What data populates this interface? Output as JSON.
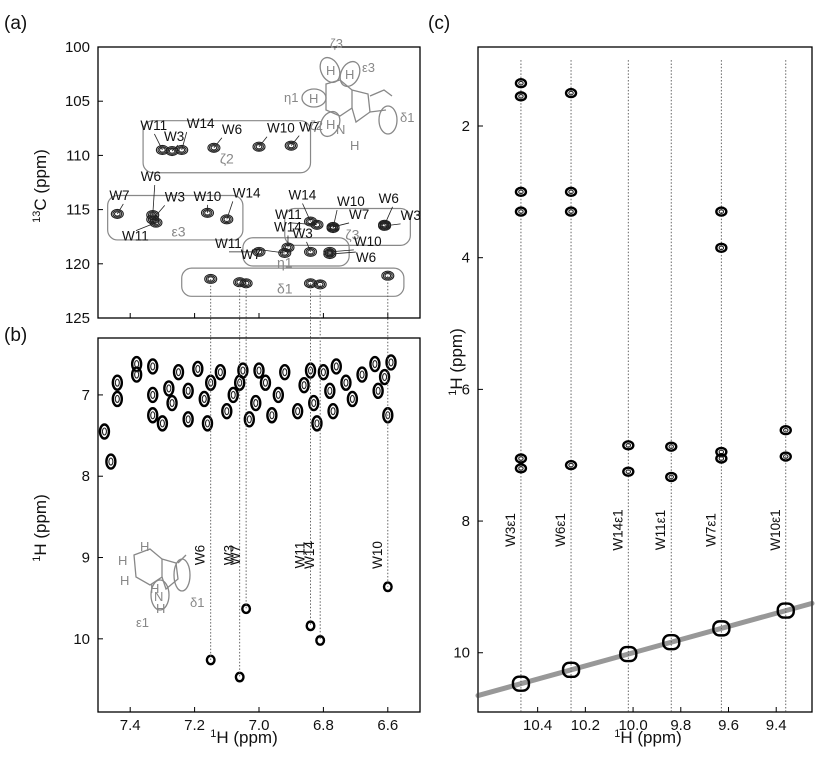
{
  "chart_data": [
    {
      "panel": "(a)",
      "type": "scatter",
      "xlabel": "",
      "ylabel": "13C (ppm)",
      "xlim": [
        7.5,
        6.5
      ],
      "ylim": [
        125,
        100
      ],
      "yticks": [
        "100",
        "105",
        "110",
        "115",
        "120",
        "125"
      ],
      "regions": [
        {
          "name": "ζ2",
          "peaks": [
            {
              "label": "W11",
              "x": 7.3,
              "y": 109.5
            },
            {
              "label": "W3",
              "x": 7.27,
              "y": 109.6
            },
            {
              "label": "W14",
              "x": 7.24,
              "y": 109.5
            },
            {
              "label": "W6",
              "x": 7.14,
              "y": 109.3
            },
            {
              "label": "W10",
              "x": 7.0,
              "y": 109.2
            },
            {
              "label": "W7",
              "x": 6.9,
              "y": 109.1
            }
          ]
        },
        {
          "name": "ε3",
          "peaks": [
            {
              "label": "W7",
              "x": 7.44,
              "y": 115.4
            },
            {
              "label": "W6",
              "x": 7.33,
              "y": 115.5
            },
            {
              "label": "W3",
              "x": 7.33,
              "y": 115.9
            },
            {
              "label": "W11",
              "x": 7.32,
              "y": 116.2
            },
            {
              "label": "W10",
              "x": 7.16,
              "y": 115.3
            },
            {
              "label": "W14",
              "x": 7.1,
              "y": 115.9
            }
          ]
        },
        {
          "name": "ζ3",
          "peaks": [
            {
              "label": "W14",
              "x": 6.84,
              "y": 116.1
            },
            {
              "label": "W11",
              "x": 6.82,
              "y": 116.4
            },
            {
              "label": "W10",
              "x": 6.77,
              "y": 116.7
            },
            {
              "label": "W7",
              "x": 6.77,
              "y": 116.6
            },
            {
              "label": "W6",
              "x": 6.61,
              "y": 116.4
            },
            {
              "label": "W3",
              "x": 6.61,
              "y": 116.5
            }
          ]
        },
        {
          "name": "η1",
          "peaks": [
            {
              "label": "W11",
              "x": 7.0,
              "y": 118.9
            },
            {
              "label": "W14",
              "x": 6.91,
              "y": 118.5
            },
            {
              "label": "W7",
              "x": 6.92,
              "y": 119.0
            },
            {
              "label": "W3",
              "x": 6.84,
              "y": 118.9
            },
            {
              "label": "W10",
              "x": 6.78,
              "y": 118.9
            },
            {
              "label": "W6",
              "x": 6.78,
              "y": 119.1
            }
          ]
        },
        {
          "name": "δ1",
          "peaks": [
            {
              "label": "W6",
              "x": 7.15,
              "y": 121.4
            },
            {
              "label": "W3",
              "x": 7.06,
              "y": 121.7
            },
            {
              "label": "W7",
              "x": 7.04,
              "y": 121.8
            },
            {
              "label": "W11",
              "x": 6.84,
              "y": 121.8
            },
            {
              "label": "W14",
              "x": 6.81,
              "y": 121.9
            },
            {
              "label": "W10",
              "x": 6.6,
              "y": 121.1
            }
          ]
        }
      ],
      "inset_labels": [
        "ζ3",
        "ε3",
        "η1",
        "ζ2",
        "δ1",
        "H",
        "H",
        "H",
        "H",
        "N",
        "H"
      ]
    },
    {
      "panel": "(b)",
      "type": "scatter",
      "xlabel": "1H (ppm)",
      "ylabel": "1H (ppm)",
      "xlim": [
        7.5,
        6.5
      ],
      "ylim": [
        6.3,
        10.9
      ],
      "xticks": [
        "7.4",
        "7.2",
        "7.0",
        "6.8",
        "6.6"
      ],
      "yticks": [
        "7",
        "8",
        "9",
        "10"
      ],
      "cross_peaks": [
        {
          "label": "W6",
          "x": 7.15,
          "y": 10.26
        },
        {
          "label": "W3",
          "x": 7.06,
          "y": 10.47
        },
        {
          "label": "W7",
          "x": 7.04,
          "y": 9.63
        },
        {
          "label": "W11",
          "x": 6.84,
          "y": 9.84
        },
        {
          "label": "W14",
          "x": 6.81,
          "y": 10.02
        },
        {
          "label": "W10",
          "x": 6.6,
          "y": 9.36
        }
      ],
      "aromatic_cluster": [
        [
          7.44,
          6.85
        ],
        [
          7.44,
          7.05
        ],
        [
          7.48,
          7.45
        ],
        [
          7.46,
          7.82
        ],
        [
          7.38,
          6.62
        ],
        [
          7.38,
          6.75
        ],
        [
          7.33,
          6.65
        ],
        [
          7.33,
          7.0
        ],
        [
          7.33,
          7.25
        ],
        [
          7.3,
          7.35
        ],
        [
          7.28,
          6.92
        ],
        [
          7.27,
          7.1
        ],
        [
          7.25,
          6.72
        ],
        [
          7.22,
          6.95
        ],
        [
          7.22,
          7.3
        ],
        [
          7.19,
          6.68
        ],
        [
          7.17,
          7.05
        ],
        [
          7.16,
          7.35
        ],
        [
          7.15,
          6.85
        ],
        [
          7.12,
          6.72
        ],
        [
          7.1,
          7.2
        ],
        [
          7.08,
          7.0
        ],
        [
          7.06,
          6.85
        ],
        [
          7.05,
          6.7
        ],
        [
          7.03,
          7.3
        ],
        [
          7.01,
          7.1
        ],
        [
          7.0,
          6.7
        ],
        [
          6.98,
          6.85
        ],
        [
          6.96,
          7.25
        ],
        [
          6.94,
          7.0
        ],
        [
          6.92,
          6.72
        ],
        [
          6.88,
          7.2
        ],
        [
          6.86,
          6.88
        ],
        [
          6.84,
          6.7
        ],
        [
          6.83,
          7.1
        ],
        [
          6.82,
          7.35
        ],
        [
          6.8,
          6.72
        ],
        [
          6.78,
          6.95
        ],
        [
          6.77,
          7.2
        ],
        [
          6.76,
          6.65
        ],
        [
          6.73,
          6.85
        ],
        [
          6.71,
          7.05
        ],
        [
          6.68,
          6.75
        ],
        [
          6.64,
          6.62
        ],
        [
          6.63,
          6.95
        ],
        [
          6.61,
          6.78
        ],
        [
          6.6,
          7.25
        ],
        [
          6.59,
          6.6
        ]
      ],
      "inset_labels": [
        "H",
        "H",
        "H",
        "H",
        "N",
        "H",
        "ε1",
        "δ1"
      ]
    },
    {
      "panel": "(c)",
      "type": "scatter",
      "xlabel": "1H (ppm)",
      "ylabel": "1H (ppm)",
      "xlim": [
        10.65,
        9.25
      ],
      "ylim": [
        0.8,
        10.9
      ],
      "xticks": [
        "10.4",
        "10.2",
        "10.0",
        "9.8",
        "9.6",
        "9.4"
      ],
      "yticks": [
        "2",
        "4",
        "6",
        "8",
        "10"
      ],
      "strips": [
        {
          "label": "W3ε1",
          "x": 10.47,
          "y_peaks": [
            1.35,
            1.55,
            3.0,
            3.3,
            7.05,
            7.2,
            10.47
          ]
        },
        {
          "label": "W6ε1",
          "x": 10.26,
          "y_peaks": [
            1.5,
            3.0,
            3.3,
            7.15,
            10.26
          ]
        },
        {
          "label": "W14ε1",
          "x": 10.02,
          "y_peaks": [
            6.85,
            7.25,
            10.02
          ]
        },
        {
          "label": "W11ε1",
          "x": 9.84,
          "y_peaks": [
            6.87,
            7.33,
            9.84
          ]
        },
        {
          "label": "W7ε1",
          "x": 9.63,
          "y_peaks": [
            3.3,
            3.85,
            6.95,
            7.05,
            9.63
          ]
        },
        {
          "label": "W10ε1",
          "x": 9.36,
          "y_peaks": [
            6.62,
            7.02,
            9.36
          ]
        }
      ]
    }
  ]
}
